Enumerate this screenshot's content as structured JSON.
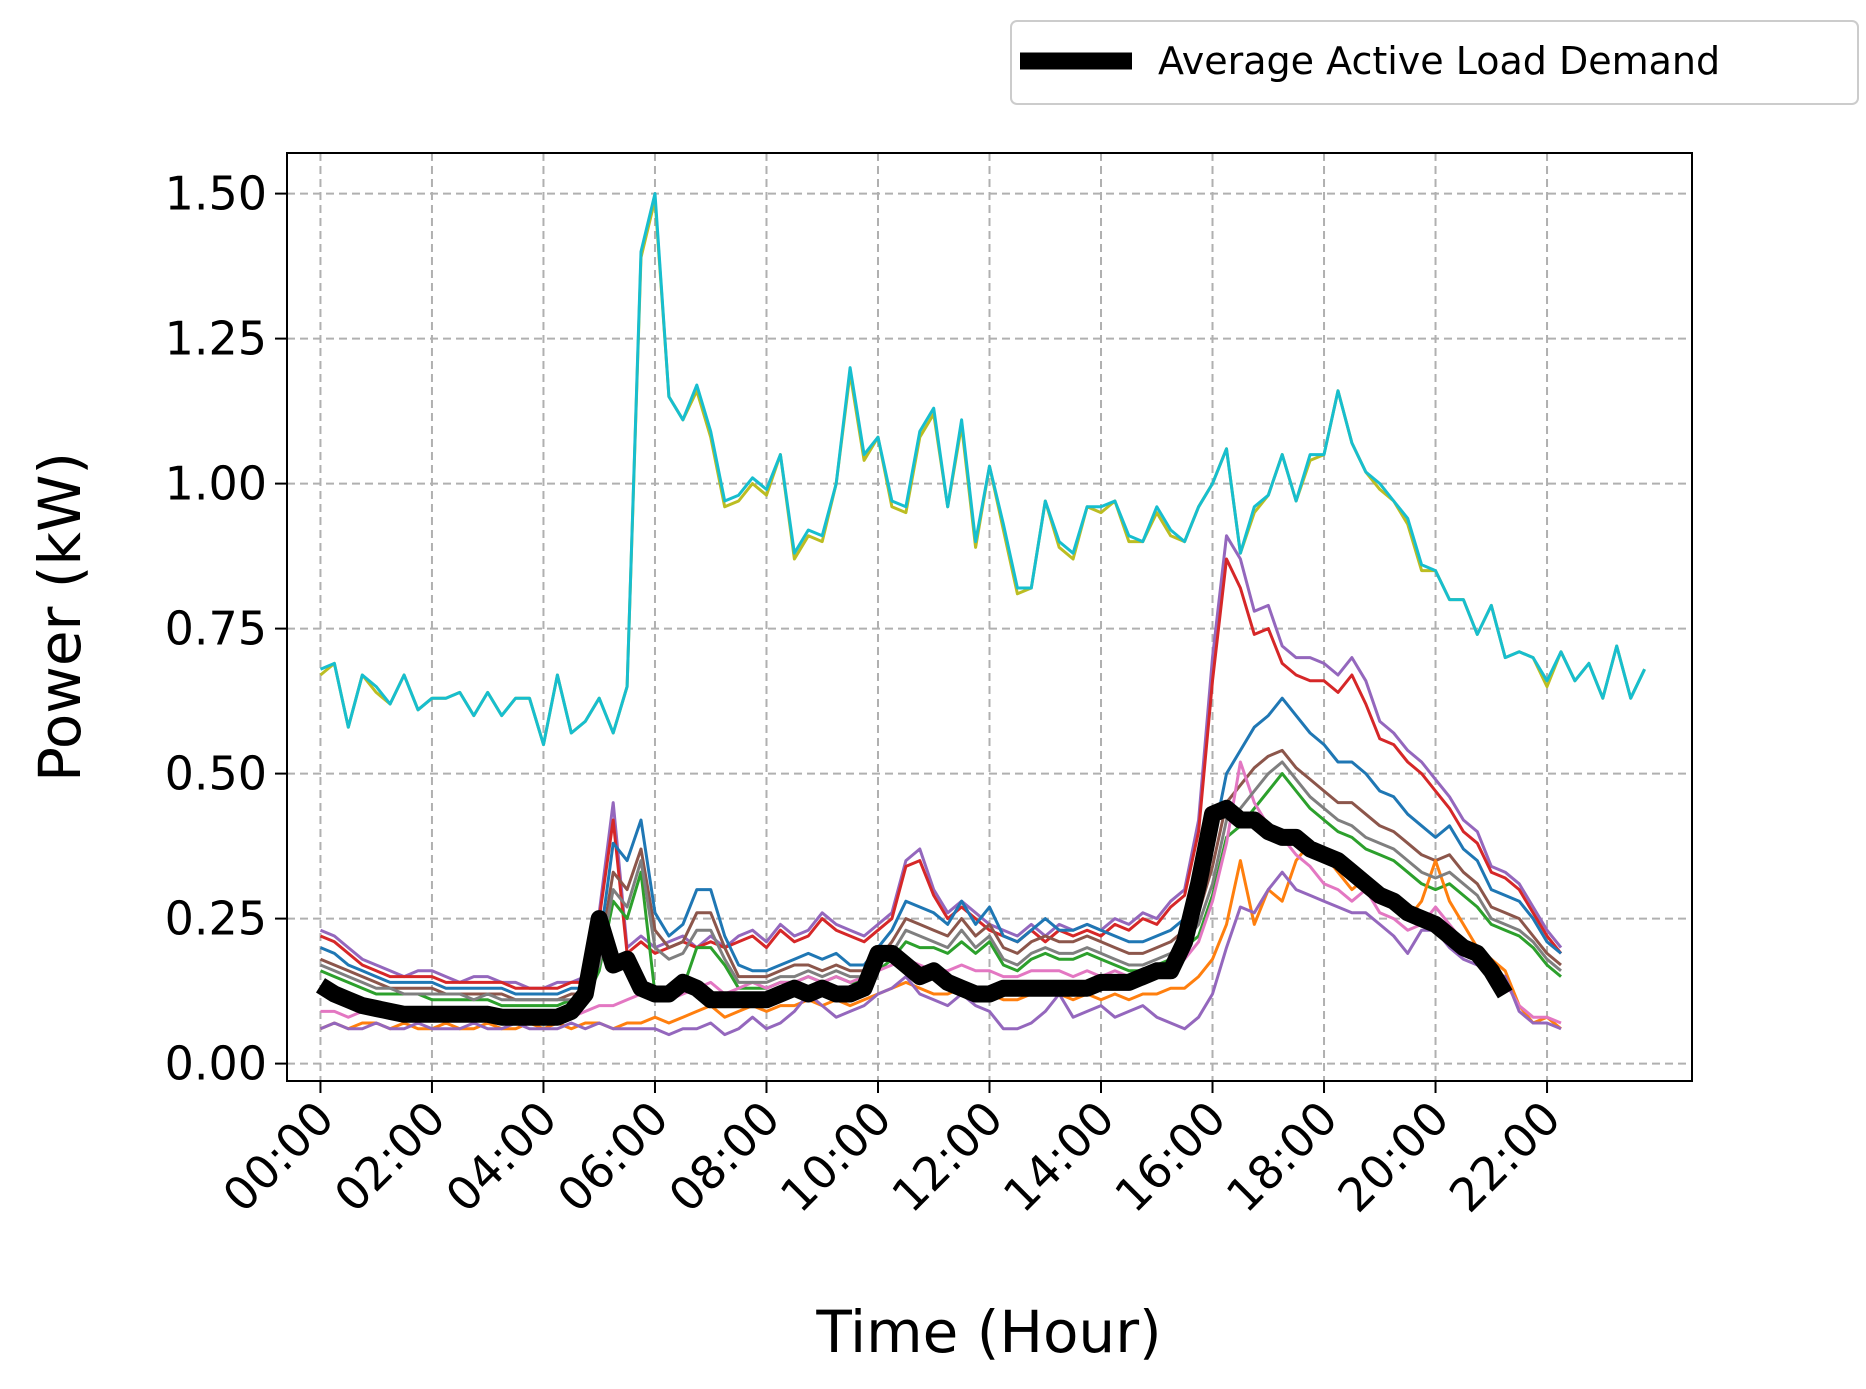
{
  "chart_data": {
    "type": "line",
    "title": "",
    "xlabel": "Time (Hour)",
    "ylabel": "Power (kW)",
    "x_start_hour": 0,
    "x_step_hours": 0.25,
    "xlim": [
      -0.6,
      24.6
    ],
    "ylim": [
      -0.03,
      1.57
    ],
    "x_ticks": [
      0,
      2,
      4,
      6,
      8,
      10,
      12,
      14,
      16,
      18,
      20,
      22
    ],
    "x_tick_labels": [
      "00:00",
      "02:00",
      "04:00",
      "06:00",
      "08:00",
      "10:00",
      "12:00",
      "14:00",
      "16:00",
      "18:00",
      "20:00",
      "22:00"
    ],
    "y_ticks": [
      0,
      0.25,
      0.5,
      0.75,
      1.0,
      1.25,
      1.5
    ],
    "y_tick_labels": [
      "0.00",
      "0.25",
      "0.50",
      "0.75",
      "1.00",
      "1.25",
      "1.50"
    ],
    "grid": true,
    "legend_position": "top-right outside",
    "legend": [
      "Average Active Load Demand"
    ],
    "series": [
      {
        "name": "",
        "color": "#bcbd22",
        "values": [
          0.67,
          0.69,
          0.58,
          0.67,
          0.64,
          0.62,
          0.67,
          0.61,
          0.63,
          0.63,
          0.64,
          0.6,
          0.64,
          0.6,
          0.63,
          0.63,
          0.55,
          0.67,
          0.57,
          0.59,
          0.63,
          0.57,
          0.65,
          1.39,
          1.49,
          1.15,
          1.11,
          1.16,
          1.08,
          0.96,
          0.97,
          1.0,
          0.98,
          1.05,
          0.87,
          0.91,
          0.9,
          1.0,
          1.19,
          1.04,
          1.08,
          0.96,
          0.95,
          1.08,
          1.12,
          0.96,
          1.1,
          0.89,
          1.03,
          0.92,
          0.81,
          0.82,
          0.97,
          0.89,
          0.87,
          0.96,
          0.95,
          0.97,
          0.9,
          0.9,
          0.95,
          0.91,
          0.9,
          0.96,
          1.0,
          1.06,
          0.88,
          0.95,
          0.98,
          1.05,
          0.97,
          1.04,
          1.05,
          1.16,
          1.07,
          1.02,
          0.99,
          0.97,
          0.93,
          0.85,
          0.85,
          0.8,
          0.8,
          0.74,
          0.79,
          0.7,
          0.71,
          0.7,
          0.65,
          0.71,
          0.66,
          0.69,
          0.63,
          0.72,
          0.63,
          0.68
        ]
      },
      {
        "name": "",
        "color": "#17becf",
        "values": [
          0.68,
          0.69,
          0.58,
          0.67,
          0.65,
          0.62,
          0.67,
          0.61,
          0.63,
          0.63,
          0.64,
          0.6,
          0.64,
          0.6,
          0.63,
          0.63,
          0.55,
          0.67,
          0.57,
          0.59,
          0.63,
          0.57,
          0.65,
          1.4,
          1.5,
          1.15,
          1.11,
          1.17,
          1.09,
          0.97,
          0.98,
          1.01,
          0.99,
          1.05,
          0.88,
          0.92,
          0.91,
          1.0,
          1.2,
          1.05,
          1.08,
          0.97,
          0.96,
          1.09,
          1.13,
          0.96,
          1.11,
          0.9,
          1.03,
          0.93,
          0.82,
          0.82,
          0.97,
          0.9,
          0.88,
          0.96,
          0.96,
          0.97,
          0.91,
          0.9,
          0.96,
          0.92,
          0.9,
          0.96,
          1.0,
          1.06,
          0.88,
          0.96,
          0.98,
          1.05,
          0.97,
          1.05,
          1.05,
          1.16,
          1.07,
          1.02,
          1.0,
          0.97,
          0.94,
          0.86,
          0.85,
          0.8,
          0.8,
          0.74,
          0.79,
          0.7,
          0.71,
          0.7,
          0.66,
          0.71,
          0.66,
          0.69,
          0.63,
          0.72,
          0.63,
          0.68
        ]
      },
      {
        "name": "",
        "color": "#9467bd",
        "values": [
          0.23,
          0.22,
          0.2,
          0.18,
          0.17,
          0.16,
          0.15,
          0.16,
          0.16,
          0.15,
          0.14,
          0.15,
          0.15,
          0.14,
          0.14,
          0.13,
          0.13,
          0.14,
          0.14,
          0.15,
          0.26,
          0.45,
          0.2,
          0.22,
          0.2,
          0.21,
          0.22,
          0.2,
          0.22,
          0.2,
          0.22,
          0.23,
          0.21,
          0.24,
          0.22,
          0.23,
          0.26,
          0.24,
          0.23,
          0.22,
          0.24,
          0.26,
          0.35,
          0.37,
          0.3,
          0.26,
          0.28,
          0.26,
          0.24,
          0.23,
          0.22,
          0.24,
          0.22,
          0.24,
          0.23,
          0.24,
          0.23,
          0.25,
          0.24,
          0.26,
          0.25,
          0.28,
          0.3,
          0.42,
          0.7,
          0.91,
          0.87,
          0.78,
          0.79,
          0.72,
          0.7,
          0.7,
          0.69,
          0.67,
          0.7,
          0.66,
          0.59,
          0.57,
          0.54,
          0.52,
          0.49,
          0.46,
          0.42,
          0.4,
          0.34,
          0.33,
          0.31,
          0.27,
          0.23,
          0.2
        ]
      },
      {
        "name": "",
        "color": "#d62728",
        "values": [
          0.22,
          0.21,
          0.19,
          0.17,
          0.16,
          0.15,
          0.15,
          0.15,
          0.15,
          0.14,
          0.14,
          0.14,
          0.14,
          0.14,
          0.13,
          0.13,
          0.13,
          0.13,
          0.14,
          0.14,
          0.25,
          0.42,
          0.19,
          0.21,
          0.19,
          0.2,
          0.21,
          0.2,
          0.21,
          0.2,
          0.21,
          0.22,
          0.2,
          0.23,
          0.21,
          0.22,
          0.25,
          0.23,
          0.22,
          0.21,
          0.23,
          0.25,
          0.34,
          0.35,
          0.29,
          0.25,
          0.27,
          0.25,
          0.23,
          0.22,
          0.21,
          0.23,
          0.21,
          0.23,
          0.22,
          0.23,
          0.22,
          0.24,
          0.23,
          0.25,
          0.24,
          0.27,
          0.29,
          0.4,
          0.66,
          0.87,
          0.82,
          0.74,
          0.75,
          0.69,
          0.67,
          0.66,
          0.66,
          0.64,
          0.67,
          0.62,
          0.56,
          0.55,
          0.52,
          0.5,
          0.47,
          0.44,
          0.4,
          0.38,
          0.33,
          0.32,
          0.3,
          0.26,
          0.22,
          0.19
        ]
      },
      {
        "name": "",
        "color": "#1f77b4",
        "values": [
          0.2,
          0.19,
          0.17,
          0.16,
          0.15,
          0.14,
          0.14,
          0.14,
          0.14,
          0.13,
          0.13,
          0.13,
          0.13,
          0.13,
          0.12,
          0.12,
          0.12,
          0.12,
          0.13,
          0.13,
          0.2,
          0.38,
          0.35,
          0.42,
          0.26,
          0.22,
          0.24,
          0.3,
          0.3,
          0.22,
          0.17,
          0.16,
          0.16,
          0.17,
          0.18,
          0.19,
          0.18,
          0.19,
          0.17,
          0.17,
          0.2,
          0.23,
          0.28,
          0.27,
          0.26,
          0.24,
          0.28,
          0.24,
          0.27,
          0.22,
          0.21,
          0.23,
          0.25,
          0.23,
          0.23,
          0.24,
          0.23,
          0.22,
          0.21,
          0.21,
          0.22,
          0.23,
          0.25,
          0.29,
          0.38,
          0.5,
          0.54,
          0.58,
          0.6,
          0.63,
          0.6,
          0.57,
          0.55,
          0.52,
          0.52,
          0.5,
          0.47,
          0.46,
          0.43,
          0.41,
          0.39,
          0.41,
          0.37,
          0.35,
          0.3,
          0.29,
          0.28,
          0.25,
          0.21,
          0.19
        ]
      },
      {
        "name": "",
        "color": "#8c564b",
        "values": [
          0.18,
          0.17,
          0.16,
          0.15,
          0.14,
          0.13,
          0.13,
          0.13,
          0.13,
          0.12,
          0.12,
          0.12,
          0.12,
          0.12,
          0.11,
          0.11,
          0.11,
          0.11,
          0.12,
          0.12,
          0.18,
          0.33,
          0.3,
          0.37,
          0.23,
          0.2,
          0.21,
          0.26,
          0.26,
          0.2,
          0.15,
          0.15,
          0.15,
          0.16,
          0.17,
          0.17,
          0.16,
          0.17,
          0.16,
          0.16,
          0.18,
          0.21,
          0.25,
          0.24,
          0.23,
          0.22,
          0.25,
          0.22,
          0.24,
          0.2,
          0.19,
          0.21,
          0.22,
          0.21,
          0.21,
          0.22,
          0.21,
          0.2,
          0.19,
          0.19,
          0.2,
          0.21,
          0.23,
          0.26,
          0.34,
          0.45,
          0.48,
          0.51,
          0.53,
          0.54,
          0.51,
          0.49,
          0.47,
          0.45,
          0.45,
          0.43,
          0.41,
          0.4,
          0.38,
          0.36,
          0.35,
          0.36,
          0.33,
          0.31,
          0.27,
          0.26,
          0.25,
          0.22,
          0.19,
          0.17
        ]
      },
      {
        "name": "",
        "color": "#2ca02c",
        "values": [
          0.16,
          0.15,
          0.14,
          0.13,
          0.12,
          0.12,
          0.12,
          0.12,
          0.11,
          0.11,
          0.11,
          0.11,
          0.11,
          0.1,
          0.1,
          0.1,
          0.1,
          0.1,
          0.11,
          0.11,
          0.16,
          0.28,
          0.25,
          0.33,
          0.12,
          0.12,
          0.13,
          0.2,
          0.2,
          0.17,
          0.13,
          0.13,
          0.13,
          0.14,
          0.14,
          0.15,
          0.14,
          0.15,
          0.14,
          0.14,
          0.16,
          0.18,
          0.21,
          0.2,
          0.2,
          0.19,
          0.21,
          0.19,
          0.21,
          0.17,
          0.16,
          0.18,
          0.19,
          0.18,
          0.18,
          0.19,
          0.18,
          0.17,
          0.16,
          0.16,
          0.17,
          0.18,
          0.2,
          0.22,
          0.29,
          0.39,
          0.41,
          0.44,
          0.47,
          0.5,
          0.47,
          0.44,
          0.42,
          0.4,
          0.39,
          0.37,
          0.36,
          0.35,
          0.33,
          0.31,
          0.3,
          0.31,
          0.29,
          0.27,
          0.24,
          0.23,
          0.22,
          0.2,
          0.17,
          0.15
        ]
      },
      {
        "name": "",
        "color": "#ff7f0e",
        "values": [
          0.06,
          0.07,
          0.06,
          0.07,
          0.07,
          0.06,
          0.07,
          0.06,
          0.06,
          0.07,
          0.06,
          0.06,
          0.07,
          0.06,
          0.06,
          0.07,
          0.06,
          0.07,
          0.06,
          0.07,
          0.07,
          0.06,
          0.07,
          0.07,
          0.08,
          0.07,
          0.08,
          0.09,
          0.1,
          0.08,
          0.09,
          0.1,
          0.09,
          0.1,
          0.1,
          0.11,
          0.1,
          0.11,
          0.1,
          0.11,
          0.12,
          0.13,
          0.14,
          0.13,
          0.12,
          0.12,
          0.13,
          0.12,
          0.12,
          0.11,
          0.11,
          0.12,
          0.12,
          0.12,
          0.11,
          0.12,
          0.11,
          0.12,
          0.11,
          0.12,
          0.12,
          0.13,
          0.13,
          0.15,
          0.18,
          0.24,
          0.35,
          0.24,
          0.3,
          0.28,
          0.35,
          0.38,
          0.36,
          0.33,
          0.3,
          0.32,
          0.3,
          0.28,
          0.25,
          0.28,
          0.35,
          0.28,
          0.24,
          0.2,
          0.18,
          0.16,
          0.1,
          0.07,
          0.08,
          0.06
        ]
      },
      {
        "name": "",
        "color": "#e377c2",
        "values": [
          0.09,
          0.09,
          0.08,
          0.09,
          0.09,
          0.08,
          0.09,
          0.08,
          0.08,
          0.09,
          0.08,
          0.08,
          0.09,
          0.08,
          0.08,
          0.09,
          0.08,
          0.09,
          0.08,
          0.09,
          0.1,
          0.1,
          0.11,
          0.12,
          0.12,
          0.11,
          0.12,
          0.13,
          0.14,
          0.12,
          0.13,
          0.14,
          0.13,
          0.14,
          0.14,
          0.15,
          0.14,
          0.15,
          0.14,
          0.15,
          0.16,
          0.17,
          0.18,
          0.17,
          0.16,
          0.16,
          0.17,
          0.16,
          0.16,
          0.15,
          0.15,
          0.16,
          0.16,
          0.16,
          0.15,
          0.16,
          0.15,
          0.16,
          0.15,
          0.16,
          0.16,
          0.17,
          0.18,
          0.21,
          0.28,
          0.38,
          0.52,
          0.45,
          0.41,
          0.39,
          0.36,
          0.34,
          0.31,
          0.3,
          0.28,
          0.3,
          0.26,
          0.25,
          0.23,
          0.24,
          0.27,
          0.24,
          0.21,
          0.18,
          0.16,
          0.14,
          0.1,
          0.08,
          0.08,
          0.07
        ]
      },
      {
        "name": "",
        "color": "#7f7f7f",
        "values": [
          0.17,
          0.16,
          0.15,
          0.14,
          0.13,
          0.13,
          0.12,
          0.12,
          0.12,
          0.12,
          0.12,
          0.11,
          0.12,
          0.11,
          0.11,
          0.11,
          0.11,
          0.11,
          0.11,
          0.12,
          0.17,
          0.3,
          0.27,
          0.35,
          0.2,
          0.18,
          0.19,
          0.23,
          0.23,
          0.18,
          0.14,
          0.14,
          0.14,
          0.15,
          0.15,
          0.16,
          0.15,
          0.16,
          0.15,
          0.15,
          0.17,
          0.19,
          0.23,
          0.22,
          0.21,
          0.2,
          0.23,
          0.2,
          0.22,
          0.18,
          0.17,
          0.19,
          0.2,
          0.19,
          0.19,
          0.2,
          0.19,
          0.18,
          0.17,
          0.17,
          0.18,
          0.19,
          0.21,
          0.24,
          0.31,
          0.42,
          0.44,
          0.47,
          0.5,
          0.52,
          0.49,
          0.46,
          0.44,
          0.42,
          0.41,
          0.39,
          0.38,
          0.37,
          0.35,
          0.33,
          0.32,
          0.33,
          0.31,
          0.29,
          0.25,
          0.24,
          0.23,
          0.21,
          0.18,
          0.16
        ]
      },
      {
        "name": "",
        "color": "#9467bd",
        "values": [
          0.06,
          0.07,
          0.06,
          0.06,
          0.07,
          0.06,
          0.06,
          0.07,
          0.06,
          0.06,
          0.06,
          0.07,
          0.06,
          0.06,
          0.07,
          0.06,
          0.06,
          0.06,
          0.07,
          0.06,
          0.07,
          0.06,
          0.06,
          0.06,
          0.06,
          0.05,
          0.06,
          0.06,
          0.07,
          0.05,
          0.06,
          0.08,
          0.06,
          0.07,
          0.09,
          0.12,
          0.1,
          0.08,
          0.09,
          0.1,
          0.12,
          0.13,
          0.15,
          0.12,
          0.11,
          0.1,
          0.12,
          0.1,
          0.09,
          0.06,
          0.06,
          0.07,
          0.09,
          0.12,
          0.08,
          0.09,
          0.1,
          0.08,
          0.09,
          0.1,
          0.08,
          0.07,
          0.06,
          0.08,
          0.12,
          0.2,
          0.27,
          0.26,
          0.3,
          0.33,
          0.3,
          0.29,
          0.28,
          0.27,
          0.26,
          0.26,
          0.24,
          0.22,
          0.19,
          0.23,
          0.23,
          0.2,
          0.18,
          0.17,
          0.16,
          0.15,
          0.09,
          0.07,
          0.07,
          0.06
        ]
      }
    ],
    "average": {
      "name": "Average Active Load Demand",
      "color": "#000000",
      "values": [
        0.135,
        0.12,
        0.11,
        0.1,
        0.095,
        0.09,
        0.085,
        0.085,
        0.085,
        0.085,
        0.085,
        0.085,
        0.085,
        0.08,
        0.08,
        0.08,
        0.08,
        0.08,
        0.09,
        0.12,
        0.25,
        0.17,
        0.18,
        0.13,
        0.12,
        0.12,
        0.14,
        0.13,
        0.11,
        0.11,
        0.11,
        0.11,
        0.11,
        0.12,
        0.13,
        0.12,
        0.13,
        0.12,
        0.12,
        0.13,
        0.19,
        0.19,
        0.17,
        0.15,
        0.16,
        0.14,
        0.13,
        0.12,
        0.12,
        0.13,
        0.13,
        0.13,
        0.13,
        0.13,
        0.13,
        0.13,
        0.14,
        0.14,
        0.14,
        0.15,
        0.16,
        0.16,
        0.21,
        0.31,
        0.43,
        0.44,
        0.42,
        0.42,
        0.4,
        0.39,
        0.39,
        0.37,
        0.36,
        0.35,
        0.33,
        0.31,
        0.29,
        0.28,
        0.26,
        0.25,
        0.24,
        0.22,
        0.2,
        0.19,
        0.16,
        0.12
      ]
    }
  }
}
